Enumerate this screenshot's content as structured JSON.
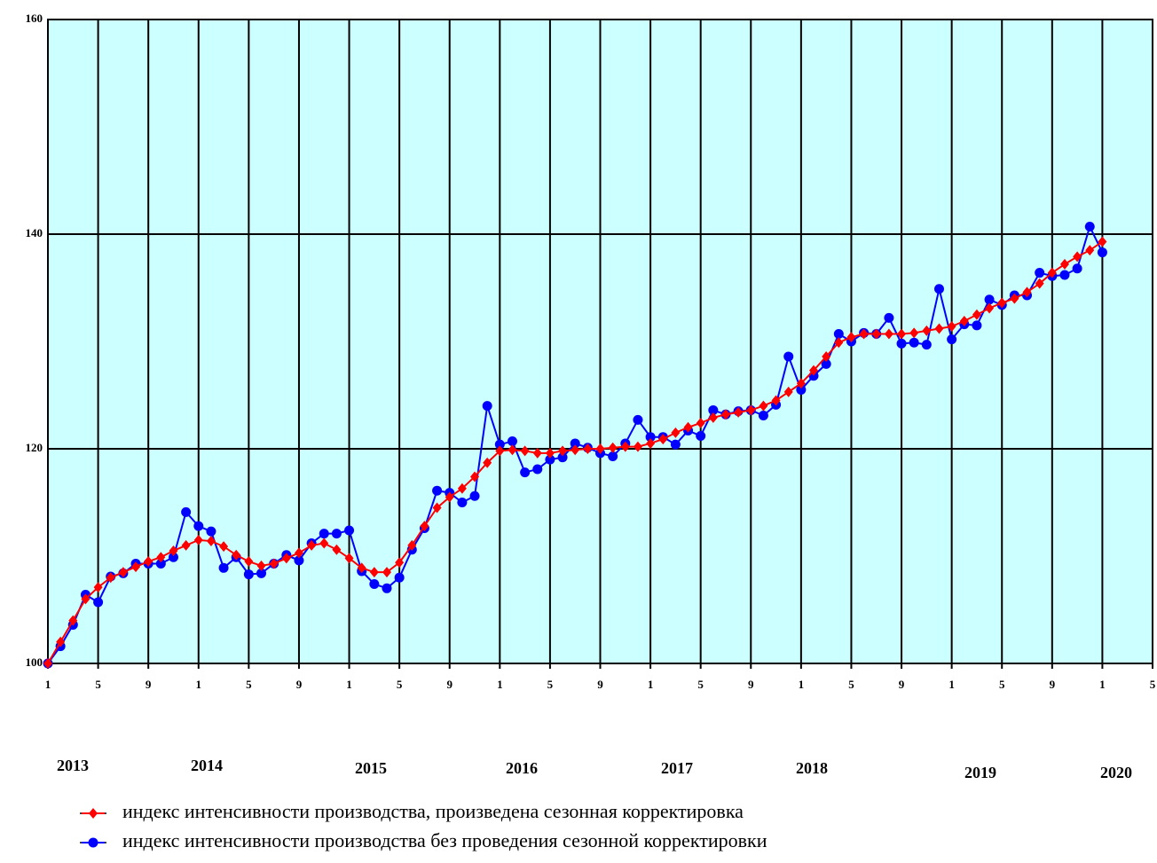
{
  "chart_data": {
    "type": "line",
    "x": [
      0,
      1,
      2,
      3,
      4,
      5,
      6,
      7,
      8,
      9,
      10,
      11,
      12,
      13,
      14,
      15,
      16,
      17,
      18,
      19,
      20,
      21,
      22,
      23,
      24,
      25,
      26,
      27,
      28,
      29,
      30,
      31,
      32,
      33,
      34,
      35,
      36,
      37,
      38,
      39,
      40,
      41,
      42,
      43,
      44,
      45,
      46,
      47,
      48,
      49,
      50,
      51,
      52,
      53,
      54,
      55,
      56,
      57,
      58,
      59,
      60,
      61,
      62,
      63,
      64,
      65,
      66,
      67,
      68,
      69,
      70,
      71,
      72,
      73,
      74,
      75,
      76,
      77,
      78,
      79,
      80,
      81,
      82,
      83,
      84
    ],
    "series": [
      {
        "name": "индекс интенсивности производства без проведения сезонной корректировки",
        "color": "#0000ff",
        "marker": "circle",
        "values": [
          100,
          101.6,
          103.6,
          106.4,
          105.7,
          108.1,
          108.4,
          109.3,
          109.3,
          109.3,
          109.9,
          114.1,
          112.8,
          112.3,
          108.9,
          109.9,
          108.3,
          108.4,
          109.3,
          110.1,
          109.6,
          111.2,
          112.1,
          112.1,
          112.4,
          108.6,
          107.4,
          107.0,
          108.0,
          110.6,
          112.6,
          116.1,
          115.9,
          115.0,
          115.6,
          124.0,
          120.4,
          120.7,
          117.8,
          118.1,
          119.0,
          119.2,
          120.5,
          120.1,
          119.6,
          119.3,
          120.5,
          122.7,
          121.1,
          121.1,
          120.4,
          121.7,
          121.2,
          123.6,
          123.2,
          123.5,
          123.6,
          123.1,
          124.1,
          128.6,
          125.5,
          126.8,
          127.9,
          130.7,
          130.0,
          130.8,
          130.7,
          132.2,
          129.8,
          129.9,
          129.7,
          134.9,
          130.2,
          131.6,
          131.5,
          133.9,
          133.4,
          134.3,
          134.3,
          136.4,
          136.1,
          136.2,
          136.8,
          140.7,
          138.3
        ]
      },
      {
        "name": "индекс интенсивности производства, произведена сезонная корректировка",
        "color": "#ff0000",
        "marker": "diamond",
        "values": [
          100,
          102.0,
          104.0,
          106.0,
          107.1,
          108.0,
          108.5,
          109.0,
          109.5,
          109.9,
          110.5,
          111.0,
          111.5,
          111.4,
          110.9,
          110.1,
          109.5,
          109.1,
          109.3,
          109.8,
          110.3,
          111.0,
          111.2,
          110.6,
          109.8,
          108.9,
          108.5,
          108.5,
          109.4,
          111.0,
          112.8,
          114.5,
          115.5,
          116.3,
          117.4,
          118.7,
          119.8,
          119.9,
          119.8,
          119.6,
          119.6,
          119.8,
          119.9,
          120.0,
          120.0,
          120.1,
          120.2,
          120.2,
          120.5,
          120.9,
          121.5,
          122.0,
          122.4,
          122.9,
          123.2,
          123.4,
          123.6,
          124.0,
          124.5,
          125.3,
          126.1,
          127.3,
          128.6,
          129.9,
          130.4,
          130.7,
          130.7,
          130.7,
          130.7,
          130.8,
          131.0,
          131.2,
          131.4,
          131.9,
          132.5,
          133.1,
          133.6,
          134.0,
          134.6,
          135.4,
          136.4,
          137.2,
          137.9,
          138.5,
          139.3
        ]
      }
    ],
    "xlim": [
      0,
      88
    ],
    "xticks": [
      {
        "value": 0,
        "label": "1"
      },
      {
        "value": 4,
        "label": "5"
      },
      {
        "value": 8,
        "label": "9"
      },
      {
        "value": 12,
        "label": "1"
      },
      {
        "value": 16,
        "label": "5"
      },
      {
        "value": 20,
        "label": "9"
      },
      {
        "value": 24,
        "label": "1"
      },
      {
        "value": 28,
        "label": "5"
      },
      {
        "value": 32,
        "label": "9"
      },
      {
        "value": 36,
        "label": "1"
      },
      {
        "value": 40,
        "label": "5"
      },
      {
        "value": 44,
        "label": "9"
      },
      {
        "value": 48,
        "label": "1"
      },
      {
        "value": 52,
        "label": "5"
      },
      {
        "value": 56,
        "label": "9"
      },
      {
        "value": 60,
        "label": "1"
      },
      {
        "value": 64,
        "label": "5"
      },
      {
        "value": 68,
        "label": "9"
      },
      {
        "value": 72,
        "label": "1"
      },
      {
        "value": 76,
        "label": "5"
      },
      {
        "value": 80,
        "label": "9"
      },
      {
        "value": 84,
        "label": "1"
      },
      {
        "value": 88,
        "label": "5"
      }
    ],
    "ylim": [
      100,
      160
    ],
    "yticks": [
      100,
      120,
      140,
      160
    ],
    "grid": true,
    "year_labels": [
      "2013",
      "2014",
      "2015",
      "2016",
      "2017",
      "2018",
      "2019",
      "2020"
    ]
  }
}
